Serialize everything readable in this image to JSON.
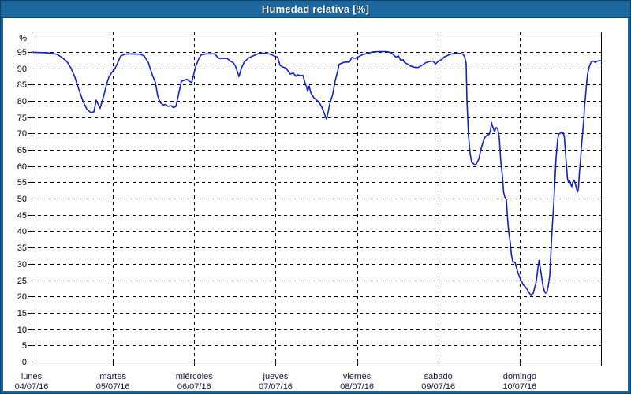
{
  "window": {
    "title": "Humedad relativa [%]"
  },
  "colors": {
    "titlebar": "#1d689f",
    "frame_outline": "#123f66",
    "background": "#fffffd",
    "grid": "#000000",
    "axis": "#000000",
    "line": "#1321c9",
    "x_label_text": "#14144d",
    "y_label_text": "#000000",
    "title_text": "#ffffff"
  },
  "chart_data": {
    "type": "line",
    "title": "Humedad relativa [%]",
    "ylabel": "%",
    "xlabel": "",
    "ylim": [
      0,
      101.25
    ],
    "y_tick_step": 5,
    "y_tick_labels": [
      "95",
      "90",
      "85",
      "80",
      "75",
      "70",
      "65",
      "60",
      "55",
      "50",
      "45",
      "40",
      "35",
      "30",
      "25",
      "20",
      "15",
      "10",
      "5",
      "0"
    ],
    "y_tick_values": [
      95,
      90,
      85,
      80,
      75,
      70,
      65,
      60,
      55,
      50,
      45,
      40,
      35,
      30,
      25,
      20,
      15,
      10,
      5,
      0
    ],
    "grid": "dashed",
    "legend": "none",
    "x_range_days": 7,
    "x_tick_labels": [
      {
        "name": "lunes",
        "date": "04/07/16"
      },
      {
        "name": "martes",
        "date": "05/07/16"
      },
      {
        "name": "miércoles",
        "date": "06/07/16"
      },
      {
        "name": "jueves",
        "date": "07/07/16"
      },
      {
        "name": "viernes",
        "date": "08/07/16"
      },
      {
        "name": "sábado",
        "date": "09/07/16"
      },
      {
        "name": "domingo",
        "date": "10/07/16"
      }
    ],
    "series": [
      {
        "name": "Humedad relativa",
        "unit": "%",
        "x_unit": "days_since_2016-07-04_00:00",
        "points": [
          [
            0,
            94.9
          ],
          [
            0.097,
            94.8
          ],
          [
            0.194,
            94.7
          ],
          [
            0.242,
            94.6
          ],
          [
            0.31,
            94.3
          ],
          [
            0.368,
            93.4
          ],
          [
            0.436,
            92
          ],
          [
            0.485,
            90
          ],
          [
            0.533,
            87.2
          ],
          [
            0.582,
            83.5
          ],
          [
            0.63,
            80
          ],
          [
            0.679,
            77.5
          ],
          [
            0.727,
            76.4
          ],
          [
            0.766,
            76.6
          ],
          [
            0.795,
            80.2
          ],
          [
            0.843,
            77.7
          ],
          [
            0.892,
            82
          ],
          [
            0.921,
            85
          ],
          [
            0.95,
            87.2
          ],
          [
            0.989,
            88.8
          ],
          [
            1.018,
            89.6
          ],
          [
            1.047,
            91
          ],
          [
            1.095,
            93.7
          ],
          [
            1.144,
            94.3
          ],
          [
            1.212,
            94.4
          ],
          [
            1.338,
            94.3
          ],
          [
            1.386,
            93.7
          ],
          [
            1.435,
            91.7
          ],
          [
            1.483,
            88
          ],
          [
            1.522,
            85.6
          ],
          [
            1.551,
            81.5
          ],
          [
            1.58,
            79.5
          ],
          [
            1.619,
            78.7
          ],
          [
            1.648,
            78.9
          ],
          [
            1.677,
            78.3
          ],
          [
            1.716,
            78.5
          ],
          [
            1.745,
            77.9
          ],
          [
            1.774,
            78.3
          ],
          [
            1.813,
            82.7
          ],
          [
            1.842,
            86
          ],
          [
            1.91,
            86.6
          ],
          [
            1.939,
            86
          ],
          [
            1.968,
            85.6
          ],
          [
            2.017,
            90.4
          ],
          [
            2.055,
            92.9
          ],
          [
            2.084,
            94.1
          ],
          [
            2.152,
            94.4
          ],
          [
            2.249,
            94.4
          ],
          [
            2.278,
            93.6
          ],
          [
            2.307,
            93
          ],
          [
            2.404,
            93
          ],
          [
            2.443,
            92.2
          ],
          [
            2.482,
            91.6
          ],
          [
            2.511,
            90.4
          ],
          [
            2.55,
            87.4
          ],
          [
            2.579,
            90
          ],
          [
            2.618,
            92
          ],
          [
            2.666,
            93.1
          ],
          [
            2.734,
            93.9
          ],
          [
            2.792,
            94.5
          ],
          [
            2.86,
            94.6
          ],
          [
            2.938,
            94.3
          ],
          [
            2.986,
            93.7
          ],
          [
            3.025,
            93.4
          ],
          [
            3.054,
            90.9
          ],
          [
            3.083,
            90.4
          ],
          [
            3.132,
            90
          ],
          [
            3.151,
            89.2
          ],
          [
            3.18,
            88.2
          ],
          [
            3.219,
            88.5
          ],
          [
            3.248,
            87.5
          ],
          [
            3.267,
            88
          ],
          [
            3.306,
            87.7
          ],
          [
            3.335,
            87.8
          ],
          [
            3.364,
            85.3
          ],
          [
            3.383,
            84.1
          ],
          [
            3.393,
            82.9
          ],
          [
            3.413,
            84.5
          ],
          [
            3.432,
            82.5
          ],
          [
            3.451,
            81.7
          ],
          [
            3.471,
            80.9
          ],
          [
            3.51,
            80.1
          ],
          [
            3.539,
            79.3
          ],
          [
            3.568,
            78.1
          ],
          [
            3.606,
            75.6
          ],
          [
            3.626,
            74.4
          ],
          [
            3.645,
            76.5
          ],
          [
            3.664,
            78.9
          ],
          [
            3.703,
            82.1
          ],
          [
            3.732,
            86.1
          ],
          [
            3.762,
            89
          ],
          [
            3.781,
            91.2
          ],
          [
            3.839,
            91.8
          ],
          [
            3.907,
            91.9
          ],
          [
            3.936,
            93.3
          ],
          [
            3.975,
            93
          ],
          [
            4.024,
            93.6
          ],
          [
            4.072,
            94.2
          ],
          [
            4.14,
            94.6
          ],
          [
            4.198,
            95
          ],
          [
            4.276,
            95.1
          ],
          [
            4.363,
            95.1
          ],
          [
            4.412,
            94.8
          ],
          [
            4.441,
            94.3
          ],
          [
            4.48,
            93.4
          ],
          [
            4.509,
            93.8
          ],
          [
            4.538,
            92.4
          ],
          [
            4.567,
            92.6
          ],
          [
            4.586,
            91.7
          ],
          [
            4.625,
            91.2
          ],
          [
            4.654,
            90.7
          ],
          [
            4.703,
            90.3
          ],
          [
            4.751,
            90.2
          ],
          [
            4.8,
            90.9
          ],
          [
            4.848,
            91.7
          ],
          [
            4.897,
            92.1
          ],
          [
            4.935,
            92.2
          ],
          [
            4.965,
            91.3
          ],
          [
            5.003,
            92.2
          ],
          [
            5.042,
            92.7
          ],
          [
            5.071,
            93.4
          ],
          [
            5.139,
            94.2
          ],
          [
            5.187,
            94.5
          ],
          [
            5.236,
            94.6
          ],
          [
            5.275,
            94.5
          ],
          [
            5.304,
            94.3
          ],
          [
            5.323,
            93.5
          ],
          [
            5.342,
            91.5
          ],
          [
            5.352,
            80
          ],
          [
            5.371,
            69.3
          ],
          [
            5.391,
            63.8
          ],
          [
            5.41,
            61.2
          ],
          [
            5.439,
            60.6
          ],
          [
            5.449,
            60.3
          ],
          [
            5.468,
            60.7
          ],
          [
            5.497,
            62.1
          ],
          [
            5.526,
            65.4
          ],
          [
            5.555,
            67.8
          ],
          [
            5.575,
            68.9
          ],
          [
            5.594,
            69.3
          ],
          [
            5.623,
            69.7
          ],
          [
            5.643,
            71
          ],
          [
            5.652,
            73.4
          ],
          [
            5.672,
            71.8
          ],
          [
            5.691,
            70.6
          ],
          [
            5.71,
            71.8
          ],
          [
            5.73,
            71.5
          ],
          [
            5.749,
            68.6
          ],
          [
            5.768,
            61.4
          ],
          [
            5.788,
            56.9
          ],
          [
            5.802,
            52.1
          ],
          [
            5.817,
            50.5
          ],
          [
            5.837,
            49.7
          ],
          [
            5.851,
            44
          ],
          [
            5.865,
            40
          ],
          [
            5.885,
            36.4
          ],
          [
            5.899,
            32.8
          ],
          [
            5.914,
            30.7
          ],
          [
            5.943,
            30.5
          ],
          [
            5.962,
            28.7
          ],
          [
            5.981,
            27.1
          ],
          [
            5.996,
            26.3
          ],
          [
            6.011,
            25.1
          ],
          [
            6.03,
            24.3
          ],
          [
            6.045,
            23.5
          ],
          [
            6.079,
            22.7
          ],
          [
            6.108,
            21.5
          ],
          [
            6.127,
            20.7
          ],
          [
            6.147,
            20.5
          ],
          [
            6.166,
            21
          ],
          [
            6.181,
            22.3
          ],
          [
            6.205,
            24.7
          ],
          [
            6.224,
            28.7
          ],
          [
            6.239,
            31.1
          ],
          [
            6.253,
            28.7
          ],
          [
            6.273,
            25.5
          ],
          [
            6.287,
            23.1
          ],
          [
            6.302,
            21.9
          ],
          [
            6.316,
            21
          ],
          [
            6.336,
            21.5
          ],
          [
            6.35,
            23.1
          ],
          [
            6.37,
            26.3
          ],
          [
            6.384,
            33.6
          ],
          [
            6.399,
            40.8
          ],
          [
            6.418,
            48.1
          ],
          [
            6.433,
            55.3
          ],
          [
            6.447,
            62.6
          ],
          [
            6.467,
            68.2
          ],
          [
            6.481,
            69.8
          ],
          [
            6.496,
            70
          ],
          [
            6.515,
            70.3
          ],
          [
            6.535,
            70.1
          ],
          [
            6.549,
            68.9
          ],
          [
            6.559,
            65.6
          ],
          [
            6.569,
            62.2
          ],
          [
            6.578,
            59.3
          ],
          [
            6.588,
            56.1
          ],
          [
            6.598,
            55.2
          ],
          [
            6.612,
            55.6
          ],
          [
            6.627,
            54.5
          ],
          [
            6.641,
            53.7
          ],
          [
            6.651,
            54.9
          ],
          [
            6.67,
            55.6
          ],
          [
            6.685,
            54.5
          ],
          [
            6.7,
            52.9
          ],
          [
            6.714,
            52.1
          ],
          [
            6.724,
            53.7
          ],
          [
            6.733,
            57.7
          ],
          [
            6.748,
            61.8
          ],
          [
            6.758,
            65.6
          ],
          [
            6.772,
            69.8
          ],
          [
            6.787,
            73.8
          ],
          [
            6.796,
            77.9
          ],
          [
            6.811,
            81.9
          ],
          [
            6.825,
            85.9
          ],
          [
            6.835,
            88.3
          ],
          [
            6.854,
            90.3
          ],
          [
            6.869,
            91.4
          ],
          [
            6.883,
            92
          ],
          [
            6.903,
            92.2
          ],
          [
            6.927,
            91.8
          ],
          [
            6.951,
            92.1
          ],
          [
            6.971,
            92.3
          ],
          [
            7,
            92.3
          ]
        ]
      }
    ]
  }
}
